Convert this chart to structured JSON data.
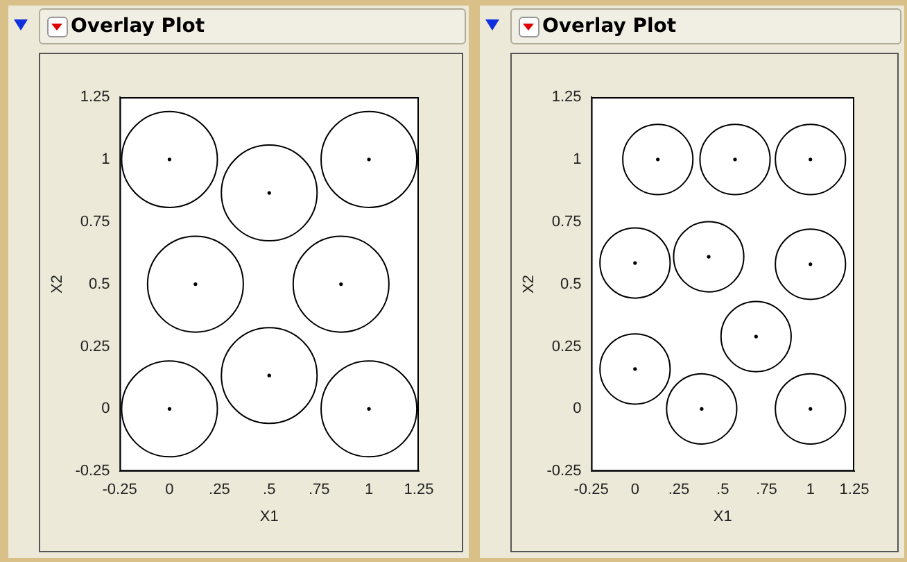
{
  "chart_data": [
    {
      "type": "scatter",
      "marker": "circle",
      "title": "Overlay Plot",
      "xlabel": "X1",
      "ylabel": "X2",
      "color": "#000000",
      "x": [
        0,
        0.5,
        1,
        0.13,
        0.86,
        0,
        0.5,
        1
      ],
      "values": [
        1,
        0.866,
        1,
        0.5,
        0.5,
        0,
        0.134,
        0
      ],
      "xlim": [
        -0.25,
        1.25
      ],
      "ylim": [
        -0.25,
        1.25
      ],
      "xticks": [
        -0.25,
        0,
        {
          "value": 0.25,
          "label": ".25"
        },
        {
          "value": 0.5,
          "label": ".5"
        },
        {
          "value": 0.75,
          "label": ".75"
        },
        1,
        1.25
      ],
      "yticks": [
        -0.25,
        0,
        0.25,
        0.5,
        0.75,
        1,
        1.25
      ]
    },
    {
      "type": "scatter",
      "marker": "circle",
      "title": "Overlay Plot",
      "xlabel": "X1",
      "ylabel": "X2",
      "color": "#000000",
      "x": [
        0.13,
        0.57,
        1,
        0,
        0.42,
        1,
        0.69,
        0,
        0.38,
        1
      ],
      "values": [
        1,
        1,
        1,
        0.585,
        0.61,
        0.58,
        0.29,
        0.16,
        0,
        0
      ],
      "xlim": [
        -0.25,
        1.25
      ],
      "ylim": [
        -0.25,
        1.25
      ],
      "xticks": [
        -0.25,
        0,
        {
          "value": 0.25,
          "label": ".25"
        },
        {
          "value": 0.5,
          "label": ".5"
        },
        {
          "value": 0.75,
          "label": ".75"
        },
        1,
        1.25
      ],
      "yticks": [
        -0.25,
        0,
        0.25,
        0.5,
        0.75,
        1,
        1.25
      ]
    }
  ]
}
